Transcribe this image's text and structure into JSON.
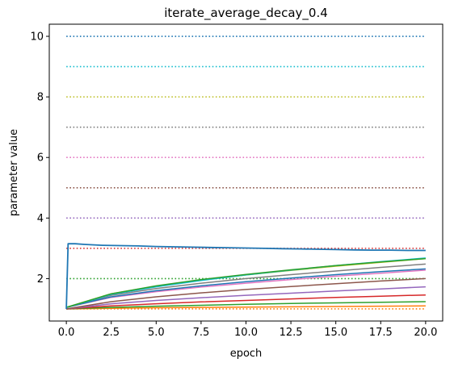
{
  "chart_data": {
    "type": "line",
    "title": "iterate_average_decay_0.4",
    "xlabel": "epoch",
    "ylabel": "parameter value",
    "xlim": [
      -0.95,
      20.95
    ],
    "ylim": [
      0.6,
      10.4
    ],
    "xticks": [
      "0.0",
      "2.5",
      "5.0",
      "7.5",
      "10.0",
      "12.5",
      "15.0",
      "17.5",
      "20.0"
    ],
    "xtick_values": [
      0,
      2.5,
      5,
      7.5,
      10,
      12.5,
      15,
      17.5,
      20
    ],
    "yticks": [
      "2",
      "4",
      "6",
      "8",
      "10"
    ],
    "ytick_values": [
      2,
      4,
      6,
      8,
      10
    ],
    "grid": false,
    "target_lines": [
      {
        "y": 1,
        "color": "#ff7f0e",
        "style": "dotted"
      },
      {
        "y": 2,
        "color": "#2ca02c",
        "style": "dotted"
      },
      {
        "y": 3,
        "color": "#d62728",
        "style": "dotted"
      },
      {
        "y": 4,
        "color": "#9467bd",
        "style": "dotted"
      },
      {
        "y": 5,
        "color": "#8c564b",
        "style": "dotted"
      },
      {
        "y": 6,
        "color": "#e377c2",
        "style": "dotted"
      },
      {
        "y": 7,
        "color": "#7f7f7f",
        "style": "dotted"
      },
      {
        "y": 8,
        "color": "#bcbd22",
        "style": "dotted"
      },
      {
        "y": 9,
        "color": "#17becf",
        "style": "dotted"
      },
      {
        "y": 10,
        "color": "#1f77b4",
        "style": "dotted"
      }
    ],
    "series": [
      {
        "color": "#ff7f0e",
        "x": [
          0,
          2.5,
          5,
          7.5,
          10,
          12.5,
          15,
          17.5,
          20
        ],
        "y": [
          1.0,
          1.02,
          1.04,
          1.05,
          1.06,
          1.07,
          1.08,
          1.09,
          1.1
        ]
      },
      {
        "color": "#2ca02c",
        "x": [
          0,
          2.5,
          5,
          7.5,
          10,
          12.5,
          15,
          17.5,
          20
        ],
        "y": [
          1.0,
          1.05,
          1.09,
          1.12,
          1.15,
          1.18,
          1.2,
          1.22,
          1.24
        ]
      },
      {
        "color": "#d62728",
        "x": [
          0,
          2.5,
          5,
          7.5,
          10,
          12.5,
          15,
          17.5,
          20
        ],
        "y": [
          1.0,
          1.1,
          1.17,
          1.23,
          1.28,
          1.33,
          1.38,
          1.42,
          1.46
        ]
      },
      {
        "color": "#9467bd",
        "x": [
          0,
          2.5,
          5,
          7.5,
          10,
          12.5,
          15,
          17.5,
          20
        ],
        "y": [
          1.0,
          1.17,
          1.28,
          1.37,
          1.45,
          1.52,
          1.59,
          1.66,
          1.73
        ]
      },
      {
        "color": "#8c564b",
        "x": [
          0,
          2.5,
          5,
          7.5,
          10,
          12.5,
          15,
          17.5,
          20
        ],
        "y": [
          1.0,
          1.24,
          1.4,
          1.53,
          1.64,
          1.74,
          1.83,
          1.92,
          2.0
        ]
      },
      {
        "color": "#e377c2",
        "x": [
          0,
          2.5,
          5,
          7.5,
          10,
          12.5,
          15,
          17.5,
          20
        ],
        "y": [
          1.05,
          1.38,
          1.57,
          1.72,
          1.85,
          1.97,
          2.08,
          2.18,
          2.28
        ]
      },
      {
        "color": "#7f7f7f",
        "x": [
          0,
          2.5,
          5,
          7.5,
          10,
          12.5,
          15,
          17.5,
          20
        ],
        "y": [
          1.05,
          1.45,
          1.67,
          1.85,
          2.0,
          2.13,
          2.25,
          2.37,
          2.48
        ]
      },
      {
        "color": "#1f77b4",
        "x": [
          0,
          2.5,
          5,
          7.5,
          10,
          12.5,
          15,
          17.5,
          20
        ],
        "y": [
          1.05,
          1.4,
          1.6,
          1.76,
          1.9,
          2.02,
          2.13,
          2.23,
          2.32
        ]
      },
      {
        "color": "#bcbd22",
        "x": [
          0,
          2.5,
          5,
          7.5,
          10,
          12.5,
          15,
          17.5,
          20
        ],
        "y": [
          1.05,
          1.5,
          1.75,
          1.95,
          2.12,
          2.27,
          2.41,
          2.54,
          2.66
        ]
      },
      {
        "color": "#17becf",
        "x": [
          0,
          2.5,
          5,
          7.5,
          10,
          12.5,
          15,
          17.5,
          20
        ],
        "y": [
          1.05,
          1.48,
          1.73,
          1.94,
          2.12,
          2.28,
          2.43,
          2.56,
          2.68
        ]
      },
      {
        "color": "#2ca02c",
        "x": [
          0,
          2.5,
          5,
          7.5,
          10,
          12.5,
          15,
          17.5,
          20
        ],
        "y": [
          1.05,
          1.5,
          1.76,
          1.97,
          2.14,
          2.29,
          2.43,
          2.55,
          2.66
        ]
      },
      {
        "color": "#1f77b4",
        "x": [
          0,
          0.1,
          0.5,
          1,
          2,
          3,
          4,
          5,
          6,
          7,
          8,
          9,
          10,
          11,
          12,
          13,
          14,
          15,
          16,
          17,
          18,
          19,
          20
        ],
        "y": [
          1.0,
          3.15,
          3.15,
          3.13,
          3.1,
          3.09,
          3.08,
          3.06,
          3.05,
          3.04,
          3.03,
          3.02,
          3.01,
          3.0,
          2.99,
          2.98,
          2.97,
          2.96,
          2.95,
          2.94,
          2.94,
          2.93,
          2.93
        ]
      }
    ]
  }
}
